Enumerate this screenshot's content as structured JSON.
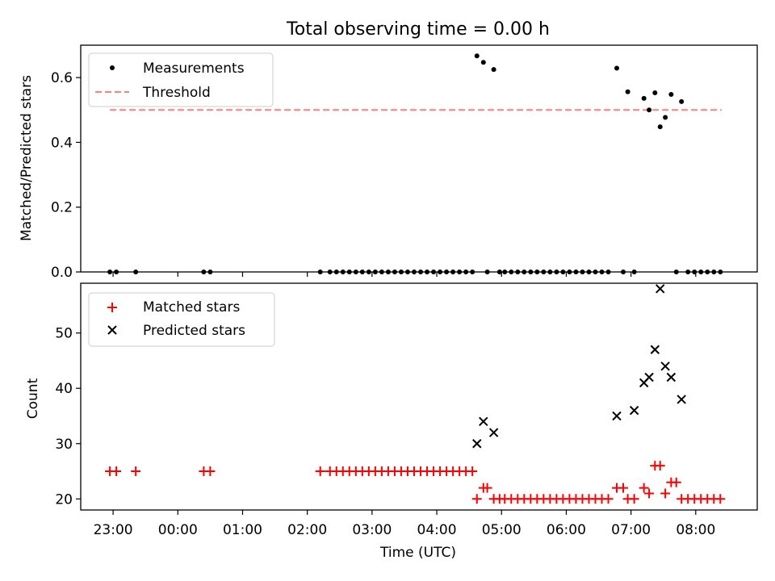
{
  "chart_data": [
    {
      "type": "scatter",
      "title": "Total observing time = 0.00 h",
      "xlabel": "",
      "ylabel": "Matched/Predicted stars",
      "ylim": [
        0,
        0.7
      ],
      "yticks": [
        "0.0",
        "0.2",
        "0.4",
        "0.6"
      ],
      "legend_position": "top-left",
      "threshold": {
        "name": "Threshold",
        "value": 0.5,
        "x_start": 22.95,
        "x_end": 8.4,
        "color": "#ff7f7f",
        "style": "dashed"
      },
      "series": [
        {
          "name": "Measurements",
          "color": "#000000",
          "marker": "dot",
          "x": [
            22.95,
            23.05,
            23.35,
            24.4,
            24.5,
            26.2,
            26.35,
            26.45,
            26.55,
            26.65,
            26.75,
            26.85,
            26.95,
            27.05,
            27.15,
            27.25,
            27.35,
            27.45,
            27.55,
            27.65,
            27.75,
            27.85,
            27.95,
            28.05,
            28.15,
            28.25,
            28.35,
            28.45,
            28.55,
            28.62,
            28.72,
            28.78,
            28.88,
            28.97,
            29.05,
            29.15,
            29.25,
            29.35,
            29.45,
            29.55,
            29.65,
            29.75,
            29.85,
            29.95,
            30.05,
            30.15,
            30.25,
            30.35,
            30.45,
            30.55,
            30.65,
            30.78,
            30.88,
            30.95,
            31.05,
            31.2,
            31.28,
            31.37,
            31.45,
            31.53,
            31.62,
            31.7,
            31.78,
            31.88,
            31.98,
            32.08,
            32.18,
            32.28,
            32.38
          ],
          "y": [
            0,
            0,
            0,
            0,
            0,
            0,
            0,
            0,
            0,
            0,
            0,
            0,
            0,
            0,
            0,
            0,
            0,
            0,
            0,
            0,
            0,
            0,
            0,
            0,
            0,
            0,
            0,
            0,
            0,
            0.667,
            0.647,
            0,
            0.625,
            0,
            0,
            0,
            0,
            0,
            0,
            0,
            0,
            0,
            0,
            0,
            0,
            0,
            0,
            0,
            0,
            0,
            0,
            0.629,
            0,
            0.556,
            0,
            0.536,
            0.5,
            0.553,
            0.448,
            0.477,
            0.548,
            0,
            0.526,
            0,
            0,
            0,
            0,
            0,
            0
          ]
        }
      ]
    },
    {
      "type": "scatter",
      "title": "",
      "xlabel": "Time (UTC)",
      "ylabel": "Count",
      "ylim": [
        18,
        59
      ],
      "yticks": [
        "20",
        "30",
        "40",
        "50"
      ],
      "xticks": [
        "23:00",
        "00:00",
        "01:00",
        "02:00",
        "03:00",
        "04:00",
        "05:00",
        "06:00",
        "07:00",
        "08:00"
      ],
      "xtick_values": [
        23,
        24,
        25,
        26,
        27,
        28,
        29,
        30,
        31,
        32
      ],
      "legend_position": "top-left",
      "series": [
        {
          "name": "Matched stars",
          "color": "#ff0000",
          "marker": "plus",
          "x": [
            22.95,
            23.05,
            23.35,
            24.4,
            24.5,
            26.2,
            26.35,
            26.45,
            26.55,
            26.65,
            26.75,
            26.85,
            26.95,
            27.05,
            27.15,
            27.25,
            27.35,
            27.45,
            27.55,
            27.65,
            27.75,
            27.85,
            27.95,
            28.05,
            28.15,
            28.25,
            28.35,
            28.45,
            28.55,
            28.62,
            28.72,
            28.78,
            28.88,
            28.97,
            29.05,
            29.15,
            29.25,
            29.35,
            29.45,
            29.55,
            29.65,
            29.75,
            29.85,
            29.95,
            30.05,
            30.15,
            30.25,
            30.35,
            30.45,
            30.55,
            30.65,
            30.78,
            30.88,
            30.95,
            31.05,
            31.2,
            31.28,
            31.37,
            31.45,
            31.53,
            31.62,
            31.7,
            31.78,
            31.88,
            31.98,
            32.08,
            32.18,
            32.28,
            32.38
          ],
          "y": [
            25,
            25,
            25,
            25,
            25,
            25,
            25,
            25,
            25,
            25,
            25,
            25,
            25,
            25,
            25,
            25,
            25,
            25,
            25,
            25,
            25,
            25,
            25,
            25,
            25,
            25,
            25,
            25,
            25,
            20,
            22,
            22,
            20,
            20,
            20,
            20,
            20,
            20,
            20,
            20,
            20,
            20,
            20,
            20,
            20,
            20,
            20,
            20,
            20,
            20,
            20,
            22,
            22,
            20,
            20,
            22,
            21,
            26,
            26,
            21,
            23,
            23,
            20,
            20,
            20,
            20,
            20,
            20,
            20
          ]
        },
        {
          "name": "Predicted stars",
          "color": "#000000",
          "marker": "x",
          "x": [
            28.62,
            28.72,
            28.88,
            30.78,
            31.05,
            31.2,
            31.28,
            31.37,
            31.45,
            31.53,
            31.62,
            31.78
          ],
          "y": [
            30,
            34,
            32,
            35,
            36,
            41,
            42,
            47,
            58,
            44,
            42,
            38
          ]
        }
      ]
    }
  ]
}
